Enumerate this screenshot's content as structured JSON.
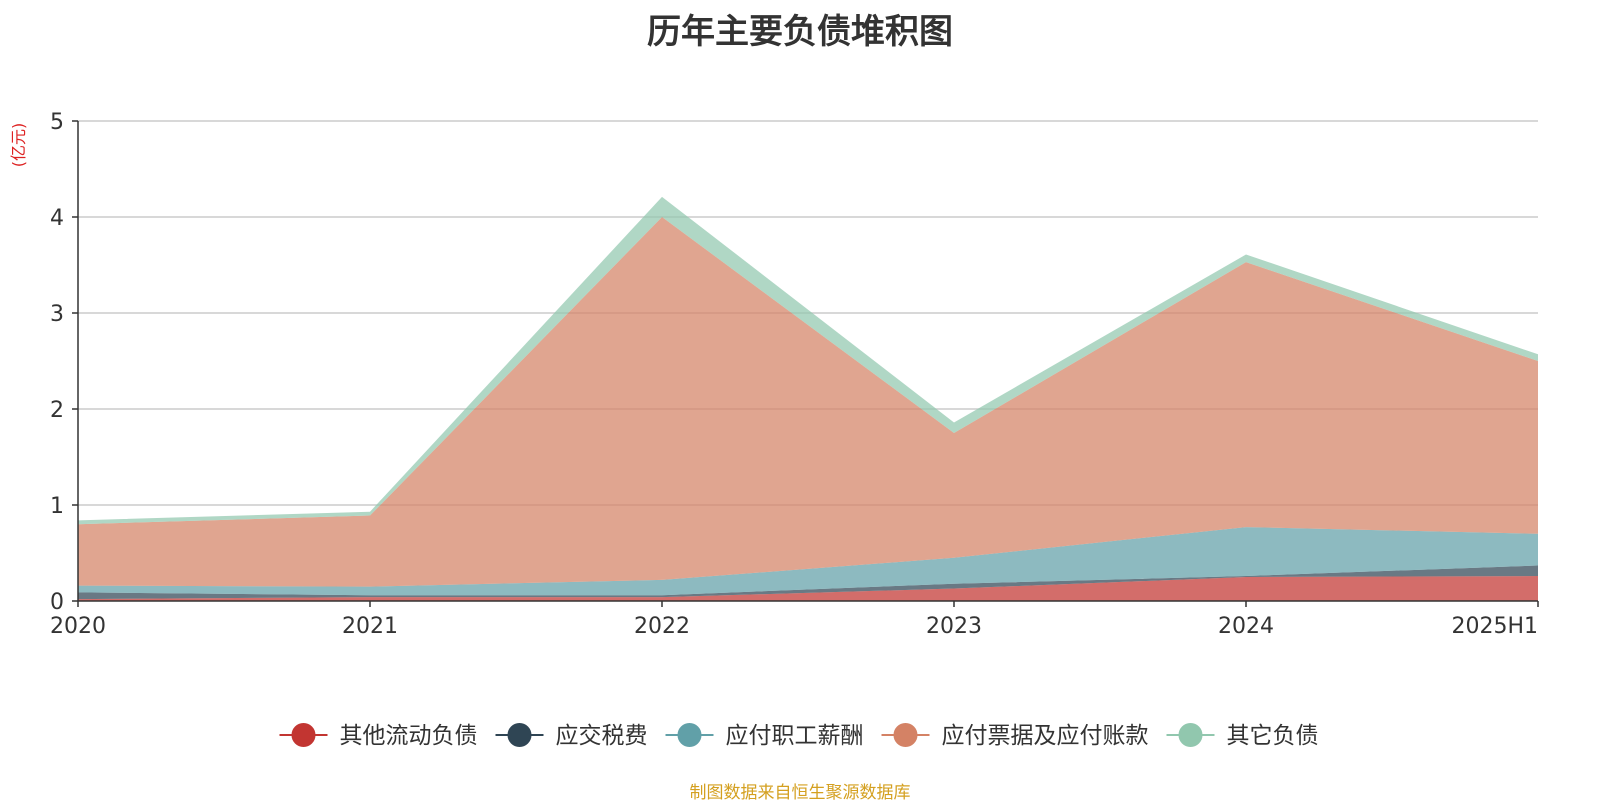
{
  "chart_data": {
    "type": "area",
    "stacked": true,
    "title": "历年主要负债堆积图",
    "y_unit_label": "(亿元)",
    "categories": [
      "2020",
      "2021",
      "2022",
      "2023",
      "2024",
      "2025H1"
    ],
    "ylim": [
      0,
      5
    ],
    "yticks": [
      0,
      1,
      2,
      3,
      4,
      5
    ],
    "grid": true,
    "legend_position": "bottom",
    "series": [
      {
        "name": "其他流动负债",
        "color": "#c23531",
        "values": [
          0.02,
          0.04,
          0.04,
          0.13,
          0.25,
          0.26
        ]
      },
      {
        "name": "应交税费",
        "color": "#2f4554",
        "values": [
          0.07,
          0.02,
          0.02,
          0.05,
          0.01,
          0.11
        ]
      },
      {
        "name": "应付职工薪酬",
        "color": "#61a0a8",
        "values": [
          0.07,
          0.09,
          0.16,
          0.27,
          0.51,
          0.33
        ]
      },
      {
        "name": "应付票据及应付账款",
        "color": "#d48265",
        "values": [
          0.64,
          0.74,
          3.78,
          1.3,
          2.76,
          1.8
        ]
      },
      {
        "name": "其它负债",
        "color": "#91c7ae",
        "values": [
          0.04,
          0.04,
          0.21,
          0.11,
          0.08,
          0.07
        ]
      }
    ]
  },
  "source_note": "制图数据来自恒生聚源数据库"
}
